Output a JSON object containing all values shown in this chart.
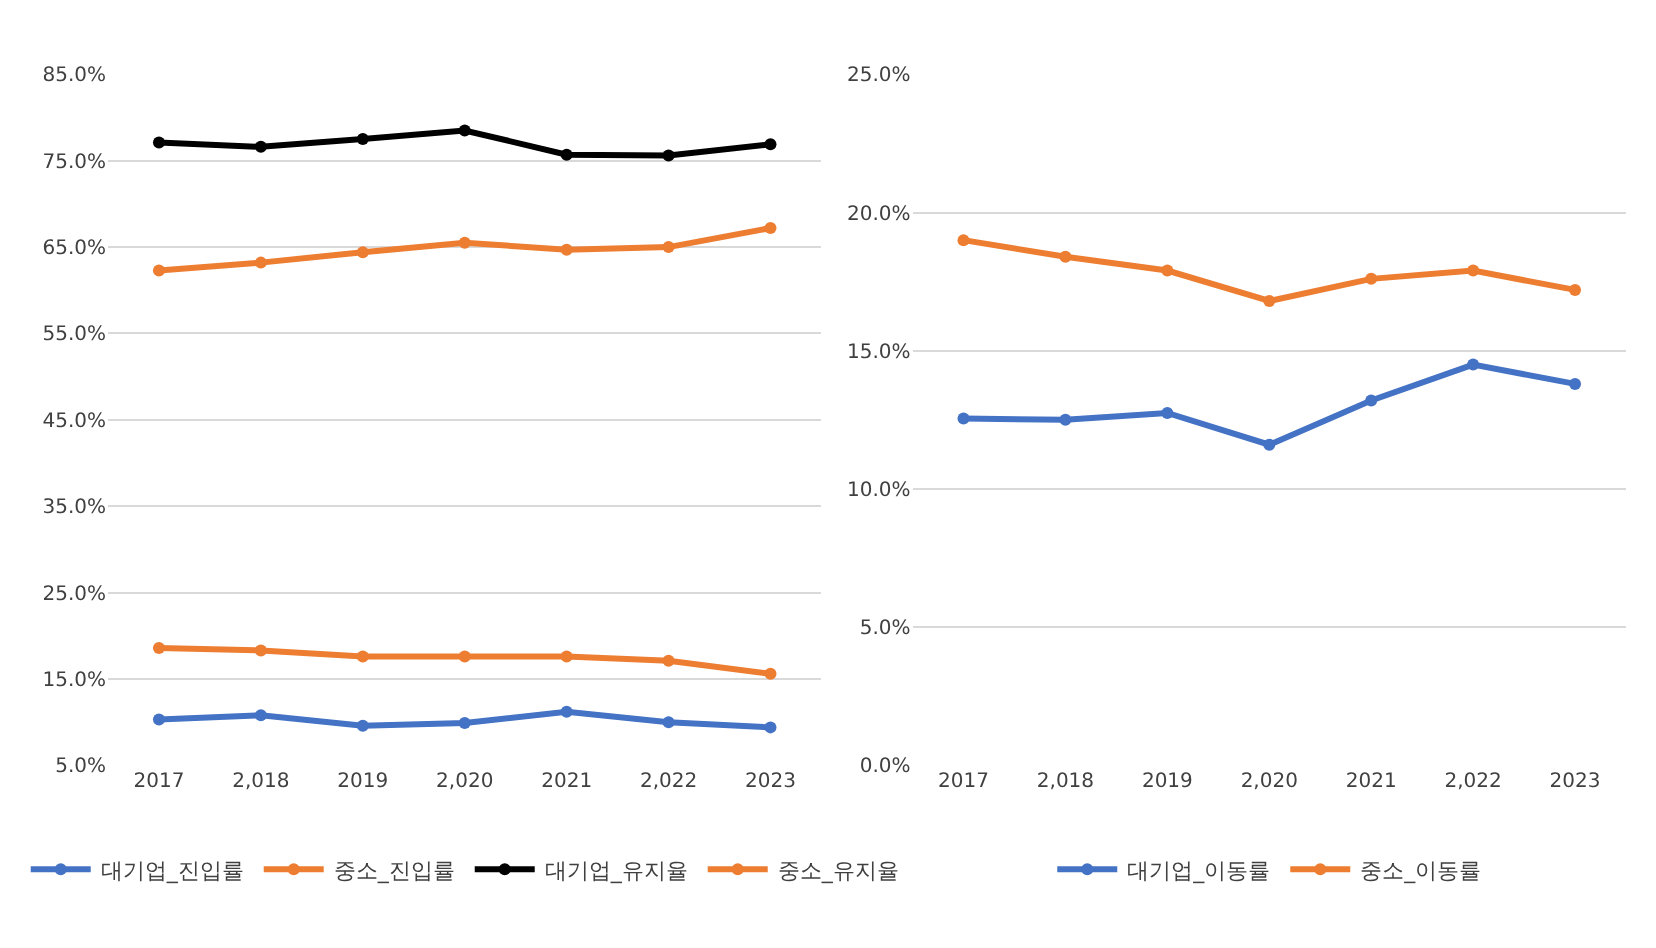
{
  "chart_data": [
    {
      "type": "line",
      "categories": [
        "2017",
        "2,018",
        "2019",
        "2,020",
        "2021",
        "2,022",
        "2023"
      ],
      "series": [
        {
          "name": "대기업_진입률",
          "color": "#4472c4",
          "values": [
            10.3,
            10.8,
            9.6,
            9.9,
            11.2,
            10.0,
            9.4
          ]
        },
        {
          "name": "중소_진입률",
          "color": "#ed7d31",
          "values": [
            18.6,
            18.3,
            17.6,
            17.6,
            17.6,
            17.1,
            15.6
          ]
        },
        {
          "name": "대기업_유지율",
          "color": "#000000",
          "values": [
            77.1,
            76.6,
            77.5,
            78.5,
            75.7,
            75.6,
            76.9
          ]
        },
        {
          "name": "중소_유지율",
          "color": "#ed7d31",
          "values": [
            62.3,
            63.2,
            64.4,
            65.5,
            64.7,
            65.0,
            67.2
          ]
        }
      ],
      "ylim": [
        5,
        85
      ],
      "yticks": [
        {
          "value": 5,
          "label": "5.0%"
        },
        {
          "value": 15,
          "label": "15.0%"
        },
        {
          "value": 25,
          "label": "25.0%"
        },
        {
          "value": 35,
          "label": "35.0%"
        },
        {
          "value": 45,
          "label": "45.0%"
        },
        {
          "value": 55,
          "label": "55.0%"
        },
        {
          "value": 65,
          "label": "65.0%"
        },
        {
          "value": 75,
          "label": "75.0%"
        },
        {
          "value": 85,
          "label": "85.0%"
        }
      ],
      "grid": "y",
      "legend": "bottom",
      "marker": "circle",
      "line_style": "solid"
    },
    {
      "type": "line",
      "categories": [
        "2017",
        "2,018",
        "2019",
        "2,020",
        "2021",
        "2,022",
        "2023"
      ],
      "series": [
        {
          "name": "대기업_이동률",
          "color": "#4472c4",
          "values": [
            12.55,
            12.5,
            12.75,
            11.6,
            13.2,
            14.5,
            13.8
          ]
        },
        {
          "name": "중소_이동률",
          "color": "#ed7d31",
          "values": [
            19.0,
            18.4,
            17.9,
            16.8,
            17.6,
            17.9,
            17.2
          ]
        }
      ],
      "ylim": [
        0,
        25
      ],
      "yticks": [
        {
          "value": 0,
          "label": "0.0%"
        },
        {
          "value": 5,
          "label": "5.0%"
        },
        {
          "value": 10,
          "label": "10.0%"
        },
        {
          "value": 15,
          "label": "15.0%"
        },
        {
          "value": 20,
          "label": "20.0%"
        },
        {
          "value": 25,
          "label": "25.0%"
        }
      ],
      "grid": "y",
      "legend": "bottom",
      "marker": "circle",
      "line_style": "solid"
    }
  ]
}
